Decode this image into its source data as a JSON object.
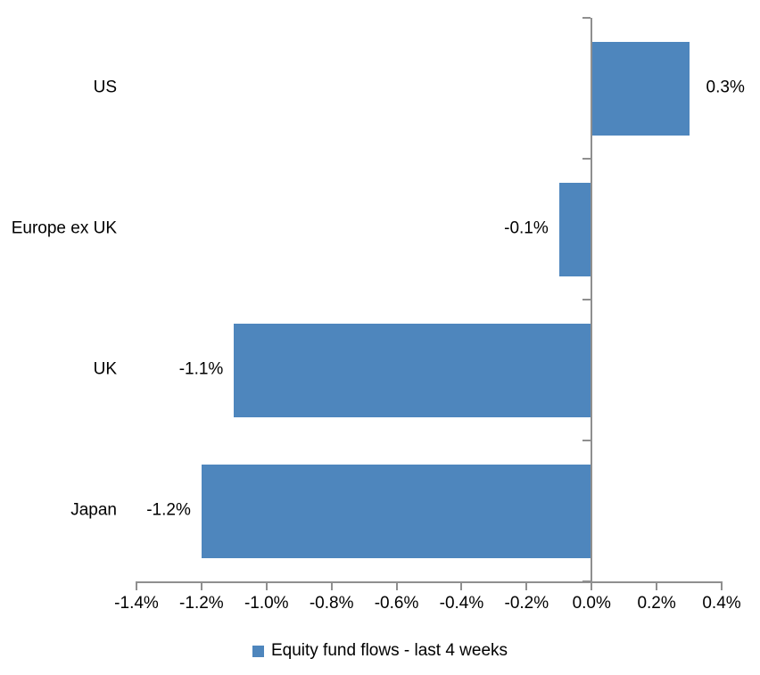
{
  "chart_data": {
    "type": "bar",
    "orientation": "horizontal",
    "title": "",
    "xlabel": "",
    "ylabel": "",
    "categories": [
      "US",
      "Europe ex UK",
      "UK",
      "Japan"
    ],
    "series": [
      {
        "name": "Equity fund flows - last 4 weeks",
        "values": [
          0.3,
          -0.1,
          -1.1,
          -1.2
        ],
        "value_labels": [
          "0.3%",
          "-0.1%",
          "-1.1%",
          "-1.2%"
        ]
      }
    ],
    "value_unit": "%",
    "xlim": [
      -1.4,
      0.4
    ],
    "x_tick_step": 0.2,
    "x_ticks": [
      {
        "value": -1.4,
        "label": "-1.4%"
      },
      {
        "value": -1.2,
        "label": "-1.2%"
      },
      {
        "value": -1.0,
        "label": "-1.0%"
      },
      {
        "value": -0.8,
        "label": "-0.8%"
      },
      {
        "value": -0.6,
        "label": "-0.6%"
      },
      {
        "value": -0.4,
        "label": "-0.4%"
      },
      {
        "value": -0.2,
        "label": "-0.2%"
      },
      {
        "value": 0.0,
        "label": "0.0%"
      },
      {
        "value": 0.2,
        "label": "0.2%"
      },
      {
        "value": 0.4,
        "label": "0.4%"
      }
    ],
    "grid": false,
    "data_labels": "outside-end",
    "legend": {
      "position": "bottom",
      "label": "Equity fund flows - last 4 weeks"
    },
    "colors": {
      "bar": "#4e86bd",
      "axis": "#8f8f8f",
      "text": "#000000",
      "background": "#ffffff"
    }
  }
}
